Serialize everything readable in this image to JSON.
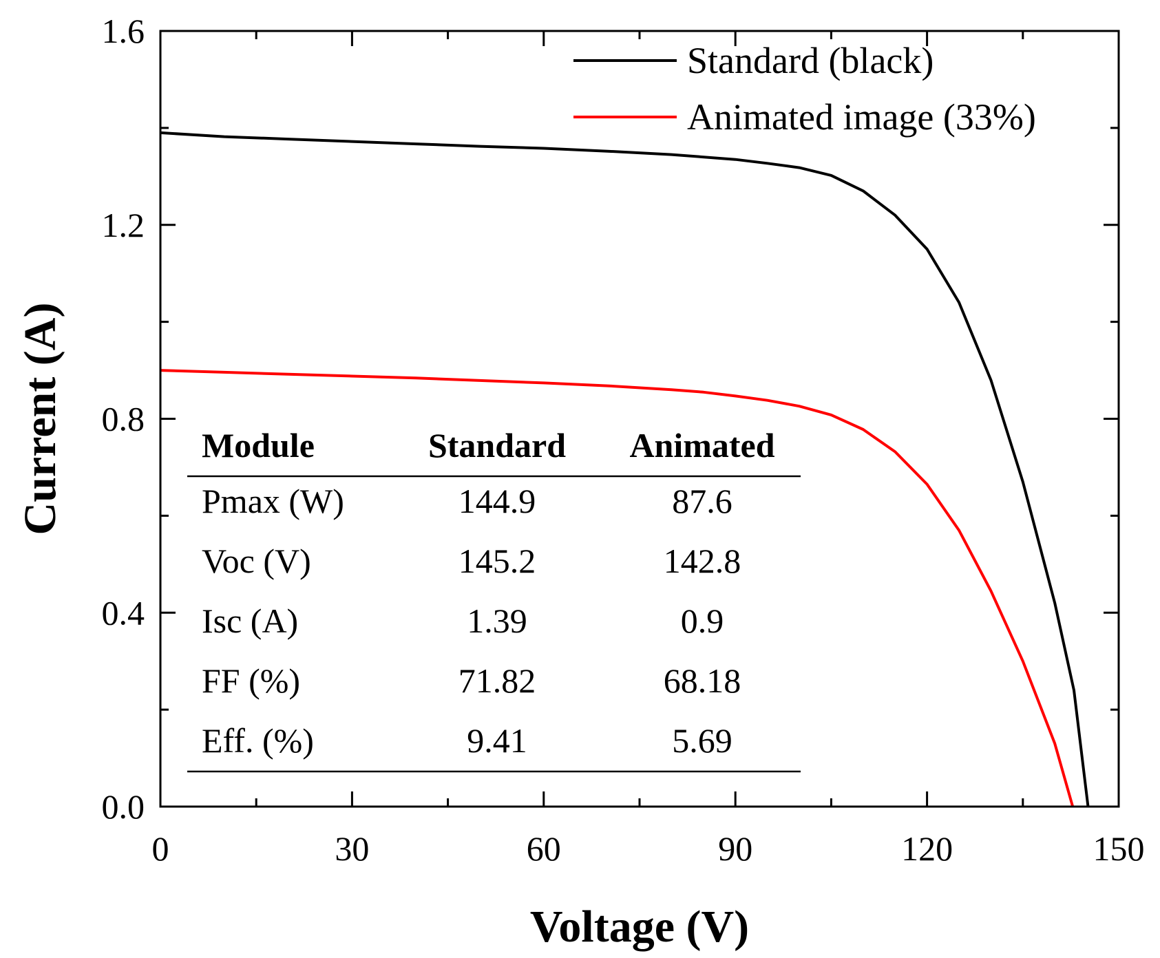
{
  "chart_data": {
    "type": "line",
    "xlabel": "Voltage (V)",
    "ylabel": "Current (A)",
    "xlim": [
      0,
      150
    ],
    "ylim": [
      0,
      1.6
    ],
    "x_ticks": [
      "0",
      "30",
      "60",
      "90",
      "120",
      "150"
    ],
    "y_ticks": [
      "0.0",
      "0.4",
      "0.8",
      "1.2",
      "1.6"
    ],
    "grid": false,
    "legend_position": "top-right",
    "series": [
      {
        "name": "Standard (black)",
        "color": "#000000",
        "points": [
          [
            0,
            1.39
          ],
          [
            10,
            1.382
          ],
          [
            20,
            1.377
          ],
          [
            30,
            1.372
          ],
          [
            40,
            1.367
          ],
          [
            50,
            1.362
          ],
          [
            60,
            1.358
          ],
          [
            70,
            1.352
          ],
          [
            80,
            1.345
          ],
          [
            90,
            1.335
          ],
          [
            95,
            1.327
          ],
          [
            100,
            1.318
          ],
          [
            105,
            1.302
          ],
          [
            110,
            1.27
          ],
          [
            115,
            1.22
          ],
          [
            120,
            1.15
          ],
          [
            125,
            1.04
          ],
          [
            130,
            0.88
          ],
          [
            135,
            0.67
          ],
          [
            140,
            0.42
          ],
          [
            143,
            0.24
          ],
          [
            145.2,
            0.0
          ]
        ]
      },
      {
        "name": "Animated image (33%)",
        "color": "#ff0000",
        "points": [
          [
            0,
            0.9
          ],
          [
            10,
            0.896
          ],
          [
            20,
            0.892
          ],
          [
            30,
            0.888
          ],
          [
            40,
            0.884
          ],
          [
            50,
            0.879
          ],
          [
            60,
            0.874
          ],
          [
            70,
            0.868
          ],
          [
            80,
            0.86
          ],
          [
            85,
            0.855
          ],
          [
            90,
            0.847
          ],
          [
            95,
            0.838
          ],
          [
            100,
            0.826
          ],
          [
            105,
            0.808
          ],
          [
            110,
            0.778
          ],
          [
            115,
            0.732
          ],
          [
            120,
            0.665
          ],
          [
            125,
            0.57
          ],
          [
            130,
            0.445
          ],
          [
            135,
            0.3
          ],
          [
            140,
            0.13
          ],
          [
            142.8,
            0.0
          ]
        ]
      }
    ],
    "inset_table": {
      "header": [
        "Module",
        "Standard",
        "Animated"
      ],
      "rows": [
        [
          "Pmax (W)",
          "144.9",
          "87.6"
        ],
        [
          "Voc (V)",
          "145.2",
          "142.8"
        ],
        [
          "Isc (A)",
          "1.39",
          "0.9"
        ],
        [
          "FF (%)",
          "71.82",
          "68.18"
        ],
        [
          "Eff. (%)",
          "9.41",
          "5.69"
        ]
      ]
    }
  }
}
